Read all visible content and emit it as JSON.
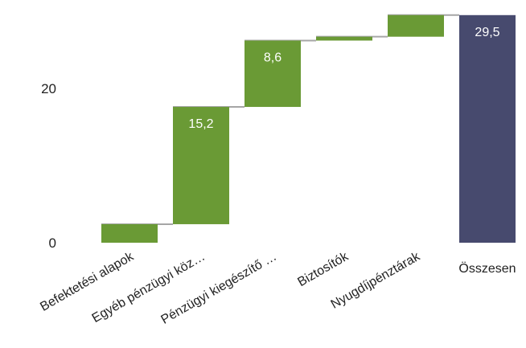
{
  "chart_data": {
    "type": "bar",
    "subtype": "waterfall",
    "title": "",
    "xlabel": "",
    "ylabel": "",
    "ylim": [
      0,
      30
    ],
    "yticks": [
      0,
      20
    ],
    "grid": false,
    "categories": [
      "Befektetési alapok",
      "Egyéb pénzügyi köz…",
      "Pénzügyi kiegészítő …",
      "Biztosítók",
      "Nyugdíjpénztárak",
      "Összesen"
    ],
    "values": [
      2.4,
      15.2,
      8.6,
      0.5,
      2.8,
      29.5
    ],
    "is_total": [
      false,
      false,
      false,
      false,
      false,
      true
    ],
    "data_labels": [
      "",
      "15,2",
      "8,6",
      "",
      "",
      "29,5"
    ],
    "colors": {
      "increase": "#6a9a35",
      "total": "#474a6e",
      "connector": "#a6a6a6"
    }
  }
}
